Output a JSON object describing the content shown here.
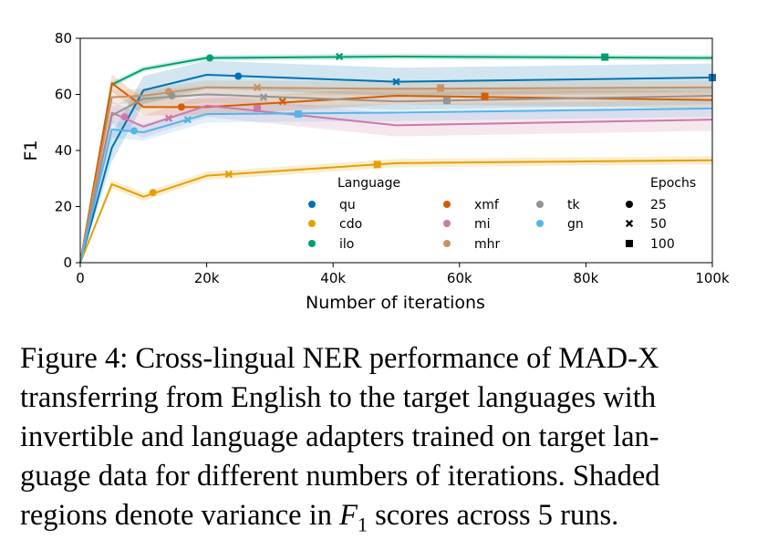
{
  "chart_data": {
    "type": "line",
    "xlabel": "Number of iterations",
    "ylabel": "F1",
    "xlim": [
      0,
      100000
    ],
    "ylim": [
      0,
      80
    ],
    "x_ticks": [
      0,
      20000,
      40000,
      60000,
      80000,
      100000
    ],
    "x_tick_labels": [
      "0",
      "20k",
      "40k",
      "60k",
      "80k",
      "100k"
    ],
    "y_ticks": [
      0,
      20,
      40,
      60,
      80
    ],
    "y_tick_labels": [
      "0",
      "20",
      "40",
      "60",
      "80"
    ],
    "grid": false,
    "legend": {
      "placement": "inside-bottom-right",
      "language_title": "Language",
      "epochs_title": "Epochs",
      "epochs": [
        {
          "label": "25",
          "marker": "circle"
        },
        {
          "label": "50",
          "marker": "x"
        },
        {
          "label": "100",
          "marker": "square"
        }
      ]
    },
    "series": [
      {
        "name": "qu",
        "color": "#0072b2",
        "x": [
          0,
          5000,
          10000,
          20000,
          50000,
          100000
        ],
        "y": [
          0,
          41,
          61.5,
          67,
          64.5,
          66
        ],
        "band": 5,
        "markers": [
          {
            "x": 25000,
            "y": 66.5,
            "shape": "circle"
          },
          {
            "x": 50000,
            "y": 64.5,
            "shape": "x"
          },
          {
            "x": 100000,
            "y": 66,
            "shape": "square"
          }
        ]
      },
      {
        "name": "cdo",
        "color": "#e69f00",
        "x": [
          0,
          5000,
          10000,
          20000,
          50000,
          100000
        ],
        "y": [
          0,
          28,
          23.5,
          31,
          35.5,
          36.5
        ],
        "band": 1.5,
        "markers": [
          {
            "x": 11500,
            "y": 25,
            "shape": "circle"
          },
          {
            "x": 23500,
            "y": 31.5,
            "shape": "x"
          },
          {
            "x": 47000,
            "y": 35,
            "shape": "square"
          }
        ]
      },
      {
        "name": "ilo",
        "color": "#009e73",
        "x": [
          0,
          5000,
          10000,
          20000,
          50000,
          100000
        ],
        "y": [
          0,
          63.5,
          69,
          73,
          73.5,
          73
        ],
        "band": 1,
        "markers": [
          {
            "x": 20500,
            "y": 73,
            "shape": "circle"
          },
          {
            "x": 41000,
            "y": 73.5,
            "shape": "x"
          },
          {
            "x": 83000,
            "y": 73.3,
            "shape": "square"
          }
        ]
      },
      {
        "name": "xmf",
        "color": "#d55e00",
        "x": [
          0,
          5000,
          10000,
          20000,
          50000,
          100000
        ],
        "y": [
          0,
          64,
          55.5,
          55.5,
          59.5,
          58
        ],
        "band": 3,
        "markers": [
          {
            "x": 16000,
            "y": 55.5,
            "shape": "circle"
          },
          {
            "x": 32000,
            "y": 57.5,
            "shape": "x"
          },
          {
            "x": 64000,
            "y": 59.3,
            "shape": "square"
          }
        ]
      },
      {
        "name": "mi",
        "color": "#cc79a7",
        "x": [
          0,
          5000,
          10000,
          20000,
          50000,
          100000
        ],
        "y": [
          0,
          53.5,
          48.5,
          56,
          49,
          51
        ],
        "band": 4,
        "markers": [
          {
            "x": 7000,
            "y": 52,
            "shape": "circle"
          },
          {
            "x": 14000,
            "y": 51.5,
            "shape": "x"
          },
          {
            "x": 28000,
            "y": 55,
            "shape": "square"
          }
        ]
      },
      {
        "name": "mhr",
        "color": "#ca9161",
        "x": [
          0,
          5000,
          10000,
          20000,
          50000,
          100000
        ],
        "y": [
          0,
          59,
          59.5,
          62.5,
          62,
          62.5
        ],
        "band": 2.5,
        "markers": [
          {
            "x": 14000,
            "y": 61,
            "shape": "circle"
          },
          {
            "x": 28000,
            "y": 62.5,
            "shape": "x"
          },
          {
            "x": 57000,
            "y": 62.3,
            "shape": "square"
          }
        ]
      },
      {
        "name": "tk",
        "color": "#949494",
        "x": [
          0,
          5000,
          10000,
          20000,
          50000,
          100000
        ],
        "y": [
          0,
          52.5,
          58.5,
          60,
          57.5,
          59.5
        ],
        "band": 3,
        "markers": [
          {
            "x": 14500,
            "y": 59.5,
            "shape": "circle"
          },
          {
            "x": 29000,
            "y": 59,
            "shape": "x"
          },
          {
            "x": 58000,
            "y": 57.8,
            "shape": "square"
          }
        ]
      },
      {
        "name": "gn",
        "color": "#56b4e9",
        "x": [
          0,
          5000,
          10000,
          20000,
          50000,
          100000
        ],
        "y": [
          0,
          47.5,
          46.5,
          53,
          53.5,
          55
        ],
        "band": 3,
        "markers": [
          {
            "x": 8500,
            "y": 47,
            "shape": "circle"
          },
          {
            "x": 17000,
            "y": 51,
            "shape": "x"
          },
          {
            "x": 34500,
            "y": 53,
            "shape": "square"
          }
        ]
      }
    ]
  },
  "caption": {
    "line1": "Figure 4: Cross-lingual NER performance of MAD-X",
    "line2": "transferring from English to the target languages with",
    "line3": "invertible and language adapters trained on target lan-",
    "line4": "guage data for different numbers of iterations. Shaded",
    "line5_pre": "regions denote variance in ",
    "line5_var": "F",
    "line5_sub": "1",
    "line5_post": " scores across 5 runs."
  }
}
